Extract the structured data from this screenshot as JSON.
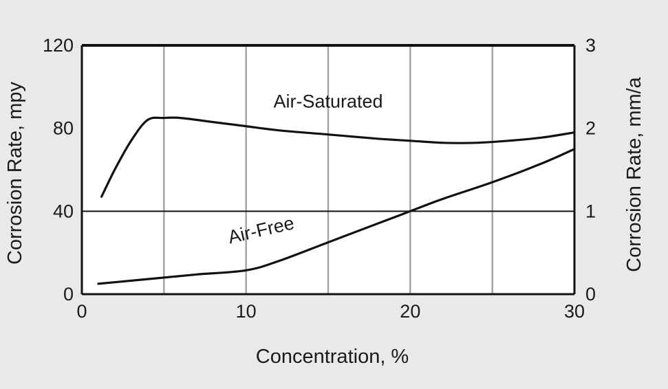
{
  "chart_data": {
    "type": "line",
    "x_label": "Concentration, %",
    "y_label_left": "Corrosion Rate, mpy",
    "y_label_right": "Corrosion Rate, mm/a",
    "x_range": [
      0,
      30
    ],
    "y_range_left": [
      0,
      120
    ],
    "y_range_right": [
      0,
      3
    ],
    "x_ticks": [
      "0",
      "10",
      "20",
      "30"
    ],
    "y_ticks_left": [
      "0",
      "40",
      "80",
      "120"
    ],
    "y_ticks_right": [
      "0",
      "1",
      "2",
      "3"
    ],
    "x_tick_values": [
      0,
      10,
      20,
      30
    ],
    "y_tick_values_left": [
      0,
      40,
      80,
      120
    ],
    "y_tick_values_right": [
      0,
      1,
      2,
      3
    ],
    "vertical_gridlines_at_x": [
      5,
      10,
      15,
      20,
      25
    ],
    "horizontal_gridlines_at_y": [
      40
    ],
    "series": [
      {
        "name": "Air-Saturated",
        "points": [
          [
            1.2,
            47
          ],
          [
            2,
            60
          ],
          [
            3,
            74
          ],
          [
            4,
            84
          ],
          [
            5,
            85
          ],
          [
            6,
            85
          ],
          [
            8,
            83
          ],
          [
            10,
            81
          ],
          [
            12,
            79
          ],
          [
            15,
            77
          ],
          [
            18,
            75
          ],
          [
            20,
            74
          ],
          [
            22,
            73
          ],
          [
            24,
            73
          ],
          [
            26,
            74
          ],
          [
            28,
            75.5
          ],
          [
            30,
            78
          ]
        ]
      },
      {
        "name": "Air-Free",
        "points": [
          [
            1,
            5
          ],
          [
            3,
            6.5
          ],
          [
            5,
            8
          ],
          [
            7,
            9.5
          ],
          [
            10,
            11.5
          ],
          [
            12,
            16
          ],
          [
            15,
            25
          ],
          [
            18,
            34
          ],
          [
            20,
            40
          ],
          [
            22,
            46
          ],
          [
            25,
            54
          ],
          [
            28,
            63
          ],
          [
            30,
            70
          ]
        ]
      }
    ],
    "annotations": [
      {
        "text": "Air-Saturated",
        "x": 15,
        "y": 90
      },
      {
        "text": "Air-Free",
        "x": 11,
        "y": 28,
        "rotation": -13
      }
    ]
  }
}
